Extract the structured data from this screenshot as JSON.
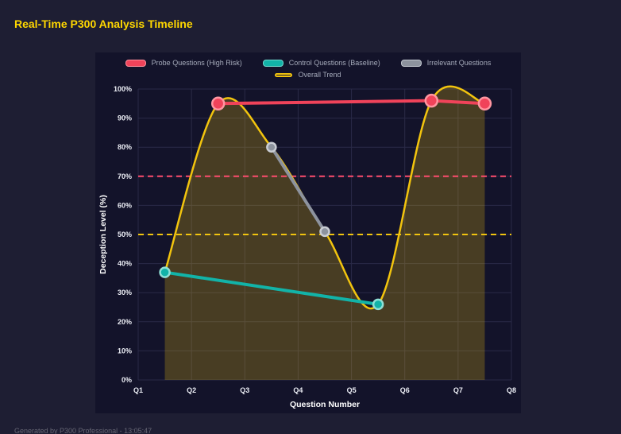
{
  "page": {
    "title": "Real-Time P300 Analysis Timeline",
    "footer": "Generated by P300 Professional - 13:05:47"
  },
  "colors": {
    "page_bg": "#1e1e33",
    "panel_bg": "#13132a",
    "grid": "#2a2a47",
    "tick_text": "#eceef5",
    "axis_text": "#ffffff",
    "legend_text": "#a6abbb",
    "title": "#ffd700",
    "footer": "#676775",
    "trend_fill": "rgba(241,196,15,0.24)"
  },
  "chart_data": {
    "type": "line",
    "title": "Real-Time P300 Analysis Timeline",
    "xlabel": "Question Number",
    "ylabel": "Deception Level (%)",
    "x_ticks": [
      "Q1",
      "Q2",
      "Q3",
      "Q4",
      "Q5",
      "Q6",
      "Q7",
      "Q8"
    ],
    "x_range": [
      1,
      8
    ],
    "ylim": [
      0,
      100
    ],
    "y_tick_step": 10,
    "y_tick_suffix": "%",
    "grid": true,
    "legend_position": "top",
    "series": [
      {
        "name": "Probe Questions (High Risk)",
        "color": "#f0435a",
        "marker_stroke": "#ff96a1",
        "swatch_border": "#ff8f9b",
        "line_width": 4,
        "marker_radius": 7.5,
        "smooth": false,
        "fill": false,
        "x": [
          2.5,
          6.5,
          7.5
        ],
        "y": [
          95,
          96,
          95
        ]
      },
      {
        "name": "Control Questions (Baseline)",
        "color": "#12b3a8",
        "marker_stroke": "#8fe0d6",
        "swatch_border": "#6fd9cd",
        "line_width": 4,
        "marker_radius": 6,
        "smooth": false,
        "fill": false,
        "x": [
          1.5,
          5.5
        ],
        "y": [
          37,
          26
        ]
      },
      {
        "name": "Irrelevant Questions",
        "color": "#8d939e",
        "marker_stroke": "#c9cdd4",
        "swatch_border": "#c3c8d0",
        "line_width": 4,
        "marker_radius": 5.5,
        "smooth": false,
        "fill": false,
        "x": [
          3.5,
          4.5
        ],
        "y": [
          80,
          51
        ]
      },
      {
        "name": "Overall Trend",
        "color": "#f2c40e",
        "marker_stroke": "",
        "swatch_border": "#f2c40e",
        "swatch_hollow": true,
        "line_width": 2.5,
        "marker_radius": 0,
        "smooth": true,
        "fill": true,
        "x": [
          1.5,
          2.5,
          3.5,
          4.5,
          5.5,
          6.5,
          7.5
        ],
        "y": [
          37,
          95,
          80,
          51,
          26,
          96,
          95
        ]
      }
    ],
    "thresholds": [
      {
        "value": 70,
        "color": "#ff4d6d",
        "style": "dashed"
      },
      {
        "value": 50,
        "color": "#f1c40f",
        "style": "dashed"
      }
    ]
  }
}
